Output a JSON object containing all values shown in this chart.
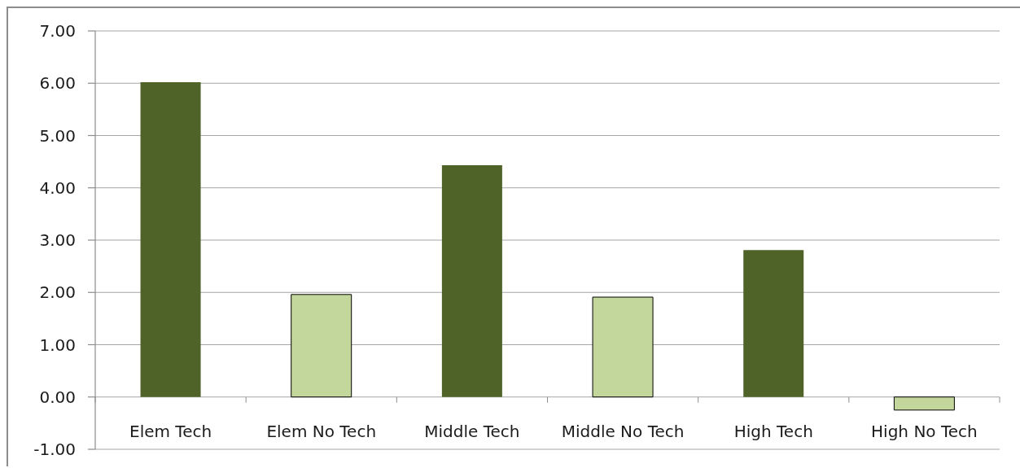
{
  "chart_data": {
    "type": "bar",
    "categories": [
      "Elem Tech",
      "Elem No Tech",
      "Middle Tech",
      "Middle No Tech",
      "High Tech",
      "High No Tech"
    ],
    "values": [
      6.02,
      1.96,
      4.43,
      1.91,
      2.81,
      -0.25
    ],
    "colors": [
      "#4f6228",
      "#c3d69b",
      "#4f6228",
      "#c3d69b",
      "#4f6228",
      "#c3d69b"
    ],
    "ylim": [
      -1,
      7
    ],
    "yticks": [
      {
        "value": -1,
        "label": "-1.00"
      },
      {
        "value": 0,
        "label": "0.00"
      },
      {
        "value": 1,
        "label": "1.00"
      },
      {
        "value": 2,
        "label": "2.00"
      },
      {
        "value": 3,
        "label": "3.00"
      },
      {
        "value": 4,
        "label": "4.00"
      },
      {
        "value": 5,
        "label": "5.00"
      },
      {
        "value": 6,
        "label": "6.00"
      },
      {
        "value": 7,
        "label": "7.00"
      }
    ],
    "grid": "y"
  }
}
